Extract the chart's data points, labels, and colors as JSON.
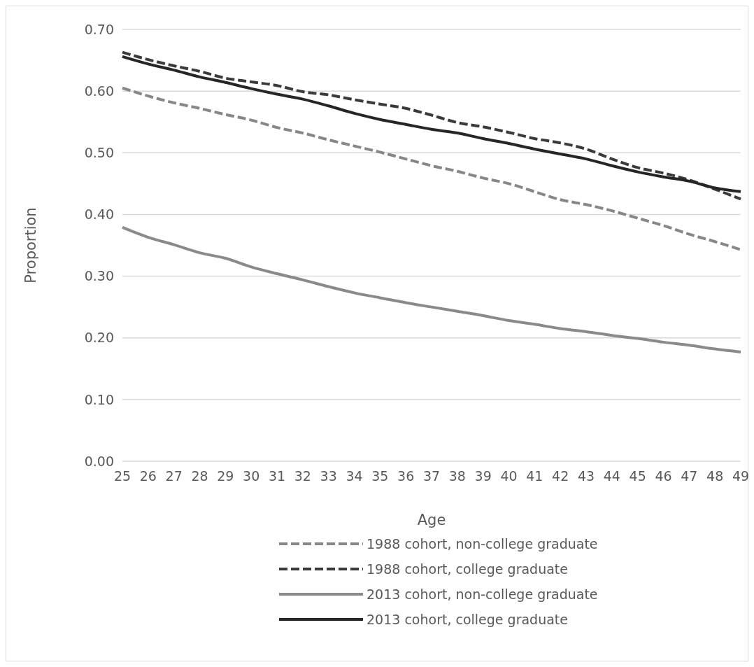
{
  "chart_data": {
    "type": "line",
    "xlabel": "Age",
    "ylabel": "Proportion",
    "categories": [
      "25",
      "26",
      "27",
      "28",
      "29",
      "30",
      "31",
      "32",
      "33",
      "34",
      "35",
      "36",
      "37",
      "38",
      "39",
      "40",
      "41",
      "42",
      "43",
      "44",
      "45",
      "46",
      "47",
      "48",
      "49"
    ],
    "ylim": [
      0,
      0.7
    ],
    "yticks": [
      {
        "value": 0,
        "label": "0.00"
      },
      {
        "value": 0.1,
        "label": "0.10"
      },
      {
        "value": 0.2,
        "label": "0.20"
      },
      {
        "value": 0.3,
        "label": "0.30"
      },
      {
        "value": 0.4,
        "label": "0.40"
      },
      {
        "value": 0.5,
        "label": "0.50"
      },
      {
        "value": 0.6,
        "label": "0.60"
      },
      {
        "value": 0.7,
        "label": "0.70"
      }
    ],
    "grid": "y",
    "legend": "bottom",
    "series": [
      {
        "name": "1988 cohort, non-college graduate",
        "color": "#878787",
        "line_style": "dashed",
        "values": [
          0.605,
          0.592,
          0.581,
          0.572,
          0.562,
          0.553,
          0.541,
          0.532,
          0.521,
          0.511,
          0.501,
          0.49,
          0.479,
          0.47,
          0.459,
          0.45,
          0.437,
          0.424,
          0.416,
          0.406,
          0.394,
          0.382,
          0.368,
          0.356,
          0.343
        ]
      },
      {
        "name": "1988 cohort, college graduate",
        "color": "#3a3a3a",
        "line_style": "dashed",
        "values": [
          0.663,
          0.651,
          0.641,
          0.632,
          0.621,
          0.615,
          0.609,
          0.599,
          0.594,
          0.586,
          0.579,
          0.572,
          0.561,
          0.549,
          0.542,
          0.533,
          0.523,
          0.516,
          0.506,
          0.49,
          0.476,
          0.467,
          0.456,
          0.441,
          0.425
        ]
      },
      {
        "name": "2013 cohort, non-college graduate",
        "color": "#8a8a8a",
        "line_style": "solid",
        "values": [
          0.379,
          0.363,
          0.351,
          0.338,
          0.329,
          0.315,
          0.304,
          0.294,
          0.283,
          0.273,
          0.265,
          0.257,
          0.25,
          0.243,
          0.236,
          0.228,
          0.222,
          0.215,
          0.21,
          0.204,
          0.199,
          0.193,
          0.188,
          0.182,
          0.177
        ]
      },
      {
        "name": "2013 cohort, college graduate",
        "color": "#262626",
        "line_style": "solid",
        "values": [
          0.656,
          0.644,
          0.634,
          0.623,
          0.614,
          0.604,
          0.595,
          0.587,
          0.576,
          0.564,
          0.554,
          0.546,
          0.538,
          0.532,
          0.523,
          0.515,
          0.506,
          0.498,
          0.49,
          0.479,
          0.469,
          0.461,
          0.454,
          0.443,
          0.437
        ]
      }
    ]
  }
}
